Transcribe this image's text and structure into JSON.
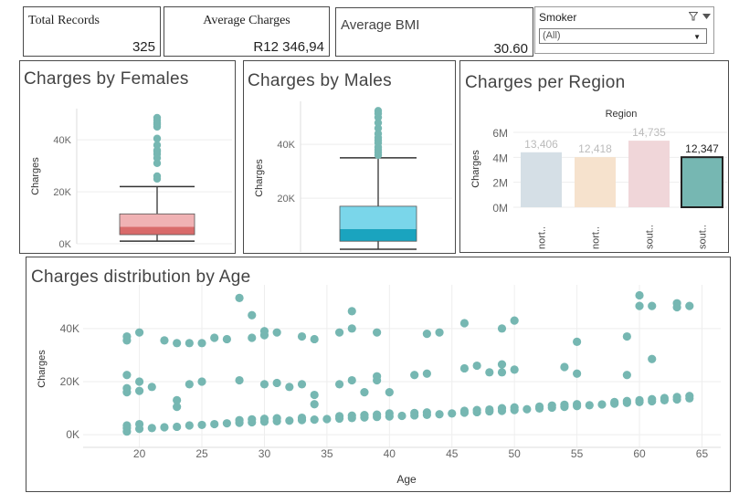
{
  "kpis": {
    "total_records": {
      "label": "Total Records",
      "value": "325"
    },
    "average_charges": {
      "label": "Average Charges",
      "value": "R12 346,94"
    },
    "average_bmi": {
      "label": "Average BMI",
      "value": "30.60"
    }
  },
  "filter": {
    "title": "Smoker",
    "selected": "(All)",
    "icons": [
      "filter-icon",
      "dropdown-arrow-icon"
    ]
  },
  "colors": {
    "teal": "#76b7b2",
    "female_upper": "#f0b2b4",
    "female_lower": "#d96b6b",
    "male_upper": "#7ad6ea",
    "male_lower": "#1aa4bf",
    "grid": "#eeeeee",
    "axis_text": "#666666"
  },
  "panels": {
    "females": {
      "title": "Charges by Females"
    },
    "males": {
      "title": "Charges by Males"
    },
    "region": {
      "title": "Charges per Region"
    },
    "age": {
      "title": "Charges distribution by Age"
    }
  },
  "chart_data": [
    {
      "type": "box",
      "title": "Charges by Females",
      "ylabel": "Charges",
      "ylim": [
        0,
        52000
      ],
      "yticks": [
        0,
        20000,
        40000
      ],
      "ytick_labels": [
        "0K",
        "20K",
        "40K"
      ],
      "box": {
        "whisker_low": 1000,
        "q1": 3500,
        "median": 6500,
        "q3": 11500,
        "whisker_high": 22000
      },
      "outliers": [
        25000,
        26000,
        31000,
        33000,
        34500,
        35500,
        36000,
        38000,
        40500,
        45000,
        46000,
        46500,
        47500,
        48500
      ]
    },
    {
      "type": "box",
      "title": "Charges by Males",
      "ylabel": "Charges",
      "ylim": [
        0,
        56000
      ],
      "yticks": [
        20000,
        40000
      ],
      "ytick_labels": [
        "20K",
        "40K"
      ],
      "box": {
        "whisker_low": 1000,
        "q1": 4000,
        "median": 8500,
        "q3": 17000,
        "whisker_high": 35000
      },
      "outliers": [
        36000,
        37000,
        38000,
        39000,
        40500,
        41500,
        42500,
        44000,
        46000,
        48000,
        50000,
        51500,
        52500
      ]
    },
    {
      "type": "bar",
      "title": "Charges per Region",
      "legend_title": "Region",
      "ylabel": "Charges",
      "ylim": [
        0,
        6000000
      ],
      "yticks": [
        0,
        2000000,
        4000000,
        6000000
      ],
      "ytick_labels": [
        "0M",
        "2M",
        "4M",
        "6M"
      ],
      "categories": [
        "nort..",
        "nort..",
        "sout..",
        "sout.."
      ],
      "values": [
        4406000,
        4018000,
        5335000,
        4012000
      ],
      "data_labels": [
        "13,406",
        "12,418",
        "14,735",
        "12,347"
      ],
      "colors": [
        "#d5dfe6",
        "#f6e2cd",
        "#f0d6d9",
        "#76b7b2"
      ],
      "highlighted_index": 3
    },
    {
      "type": "scatter",
      "title": "Charges distribution by Age",
      "xlabel": "Age",
      "ylabel": "Charges",
      "xlim": [
        15.5,
        66.5
      ],
      "ylim": [
        -2000,
        53000
      ],
      "xticks": [
        20,
        25,
        30,
        35,
        40,
        45,
        50,
        55,
        60,
        65
      ],
      "yticks": [
        0,
        20000,
        40000
      ],
      "ytick_labels": [
        "0K",
        "20K",
        "40K"
      ],
      "points": [
        [
          19,
          1200
        ],
        [
          19,
          2500
        ],
        [
          19,
          3500
        ],
        [
          19,
          16000
        ],
        [
          19,
          17500
        ],
        [
          19,
          22500
        ],
        [
          19,
          35500
        ],
        [
          19,
          37000
        ],
        [
          20,
          2200
        ],
        [
          20,
          4000
        ],
        [
          20,
          16500
        ],
        [
          20,
          20000
        ],
        [
          20,
          38500
        ],
        [
          21,
          2500
        ],
        [
          21,
          18000
        ],
        [
          22,
          2800
        ],
        [
          22,
          35500
        ],
        [
          23,
          3000
        ],
        [
          23,
          10500
        ],
        [
          23,
          13000
        ],
        [
          23,
          34500
        ],
        [
          24,
          3500
        ],
        [
          24,
          19000
        ],
        [
          24,
          34500
        ],
        [
          25,
          3700
        ],
        [
          25,
          20000
        ],
        [
          25,
          34500
        ],
        [
          26,
          4000
        ],
        [
          26,
          36500
        ],
        [
          27,
          4300
        ],
        [
          27,
          36000
        ],
        [
          28,
          4500
        ],
        [
          28,
          5500
        ],
        [
          28,
          20500
        ],
        [
          28,
          51500
        ],
        [
          29,
          4700
        ],
        [
          29,
          5800
        ],
        [
          29,
          36500
        ],
        [
          29,
          45000
        ],
        [
          30,
          4900
        ],
        [
          30,
          6000
        ],
        [
          30,
          19000
        ],
        [
          30,
          37500
        ],
        [
          30,
          39000
        ],
        [
          31,
          5100
        ],
        [
          31,
          6200
        ],
        [
          31,
          19500
        ],
        [
          31,
          38500
        ],
        [
          32,
          5300
        ],
        [
          32,
          18000
        ],
        [
          33,
          5500
        ],
        [
          33,
          6400
        ],
        [
          33,
          19000
        ],
        [
          33,
          37000
        ],
        [
          34,
          5700
        ],
        [
          34,
          11500
        ],
        [
          34,
          15000
        ],
        [
          34,
          36000
        ],
        [
          35,
          5900
        ],
        [
          36,
          6100
        ],
        [
          36,
          7000
        ],
        [
          36,
          19000
        ],
        [
          36,
          38500
        ],
        [
          37,
          6300
        ],
        [
          37,
          7200
        ],
        [
          37,
          20500
        ],
        [
          37,
          40000
        ],
        [
          37,
          46500
        ],
        [
          38,
          6500
        ],
        [
          38,
          7400
        ],
        [
          38,
          16000
        ],
        [
          39,
          6700
        ],
        [
          39,
          7600
        ],
        [
          39,
          20500
        ],
        [
          39,
          22000
        ],
        [
          39,
          38500
        ],
        [
          40,
          6900
        ],
        [
          40,
          8000
        ],
        [
          40,
          16000
        ],
        [
          41,
          7100
        ],
        [
          42,
          7300
        ],
        [
          42,
          8200
        ],
        [
          42,
          22500
        ],
        [
          43,
          7500
        ],
        [
          43,
          8400
        ],
        [
          43,
          23000
        ],
        [
          43,
          38000
        ],
        [
          44,
          7700
        ],
        [
          44,
          38500
        ],
        [
          45,
          8000
        ],
        [
          46,
          8300
        ],
        [
          46,
          9000
        ],
        [
          46,
          25000
        ],
        [
          46,
          42000
        ],
        [
          47,
          8500
        ],
        [
          47,
          9300
        ],
        [
          47,
          26000
        ],
        [
          48,
          8800
        ],
        [
          48,
          9500
        ],
        [
          48,
          23500
        ],
        [
          49,
          9000
        ],
        [
          49,
          10000
        ],
        [
          49,
          23500
        ],
        [
          49,
          26500
        ],
        [
          49,
          40000
        ],
        [
          50,
          9300
        ],
        [
          50,
          10300
        ],
        [
          50,
          24500
        ],
        [
          50,
          43000
        ],
        [
          51,
          9600
        ],
        [
          52,
          9900
        ],
        [
          52,
          10600
        ],
        [
          53,
          10200
        ],
        [
          53,
          11000
        ],
        [
          54,
          10500
        ],
        [
          54,
          11300
        ],
        [
          54,
          25500
        ],
        [
          55,
          10800
        ],
        [
          55,
          11500
        ],
        [
          55,
          23000
        ],
        [
          55,
          35000
        ],
        [
          56,
          11100
        ],
        [
          57,
          11400
        ],
        [
          58,
          11700
        ],
        [
          58,
          12300
        ],
        [
          59,
          12000
        ],
        [
          59,
          12700
        ],
        [
          59,
          22500
        ],
        [
          59,
          37000
        ],
        [
          60,
          12300
        ],
        [
          60,
          13000
        ],
        [
          60,
          48500
        ],
        [
          60,
          52500
        ],
        [
          61,
          12600
        ],
        [
          61,
          13400
        ],
        [
          61,
          28500
        ],
        [
          61,
          48500
        ],
        [
          62,
          13000
        ],
        [
          62,
          13800
        ],
        [
          63,
          13300
        ],
        [
          63,
          14200
        ],
        [
          63,
          48000
        ],
        [
          63,
          49500
        ],
        [
          64,
          13700
        ],
        [
          64,
          14600
        ],
        [
          64,
          48500
        ]
      ]
    }
  ]
}
